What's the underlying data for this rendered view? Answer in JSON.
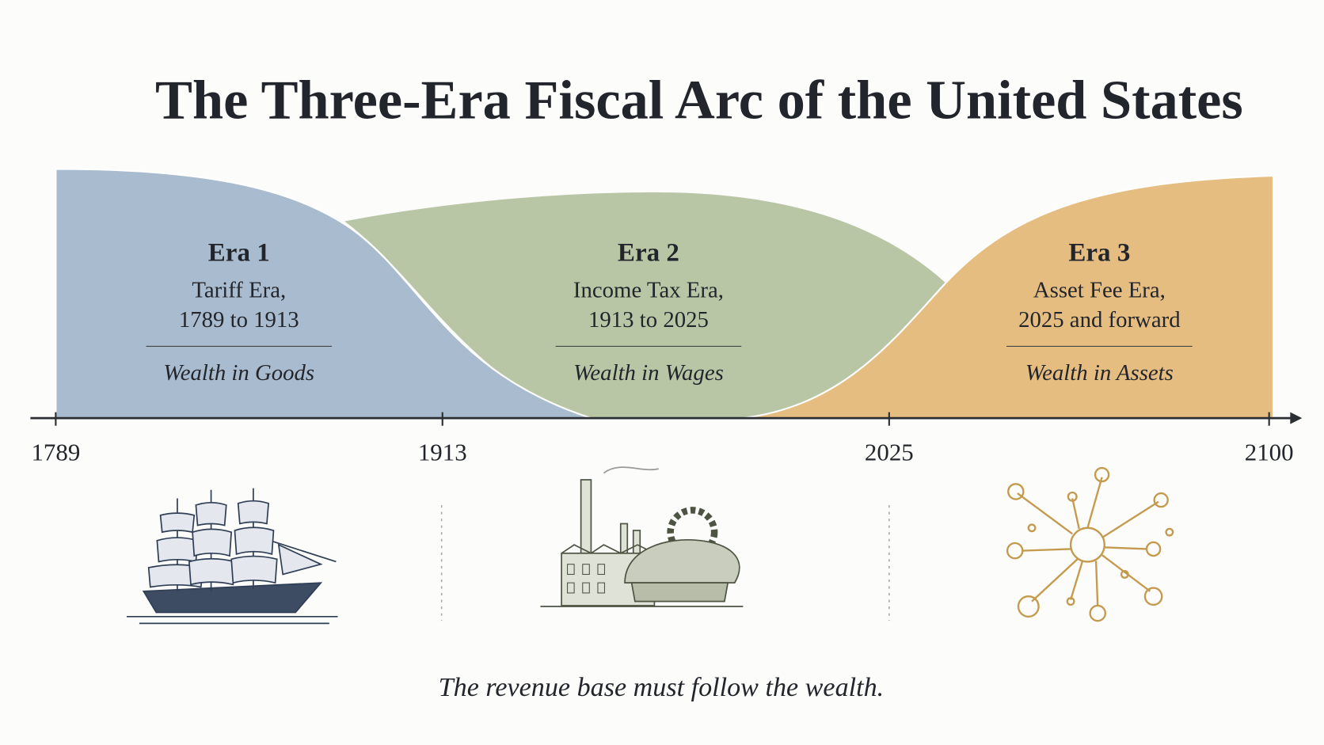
{
  "header": {
    "title": "The Three-Era Fiscal Arc of the United States"
  },
  "eras": [
    {
      "label": "Era 1",
      "name": "Tariff Era,",
      "span": "1789 to 1913",
      "tagline": "Wealth in Goods"
    },
    {
      "label": "Era 2",
      "name": "Income Tax Era,",
      "span": "1913 to 2025",
      "tagline": "Wealth in Wages"
    },
    {
      "label": "Era 3",
      "name": "Asset Fee Era,",
      "span": "2025 and forward",
      "tagline": "Wealth in Assets"
    }
  ],
  "timeline": {
    "ticks": [
      "1789",
      "1913",
      "2025",
      "2100"
    ]
  },
  "footer": {
    "text": "The revenue base must follow the wealth."
  }
}
